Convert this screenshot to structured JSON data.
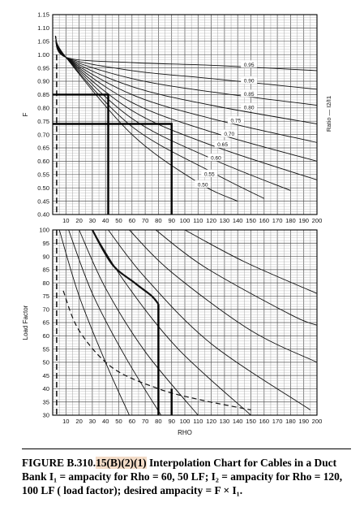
{
  "chart_data": [
    {
      "type": "line",
      "xlabel": "",
      "ylabel": "F",
      "right_label": "Ratio — I2/I1",
      "xlim": [
        0,
        200
      ],
      "ylim": [
        0.4,
        1.15
      ],
      "grid": true,
      "x_ticks": [
        10,
        20,
        30,
        40,
        50,
        60,
        70,
        80,
        90,
        100,
        110,
        120,
        130,
        140,
        150,
        160,
        170,
        180,
        190,
        200
      ],
      "x_tick_labels": [
        "10",
        "20",
        "30",
        "40",
        "50",
        "60",
        "70",
        "80",
        "90",
        "100",
        "110",
        "120",
        "130",
        "140",
        "150",
        "160",
        "170",
        "180",
        "190",
        "200"
      ],
      "y_tick_labels": [
        "1.15",
        "1.10",
        "1.05",
        "1.00",
        "0.95",
        "0.90",
        "0.85",
        "0.80",
        "0.75",
        "0.70",
        "0.65",
        "0.60",
        "0.55",
        "0.50",
        "0.45",
        "0.40"
      ],
      "series": [
        {
          "name": "0.95",
          "label_at": [
            140,
            0.96
          ],
          "points": [
            [
              2,
              1.07
            ],
            [
              10,
              0.99
            ],
            [
              60,
              0.97
            ],
            [
              120,
              0.96
            ],
            [
              200,
              0.94
            ]
          ]
        },
        {
          "name": "0.90",
          "label_at": [
            140,
            0.9
          ],
          "points": [
            [
              2,
              1.07
            ],
            [
              10,
              0.99
            ],
            [
              60,
              0.94
            ],
            [
              120,
              0.91
            ],
            [
              200,
              0.87
            ]
          ]
        },
        {
          "name": "0.85",
          "label_at": [
            140,
            0.85
          ],
          "points": [
            [
              2,
              1.07
            ],
            [
              10,
              0.99
            ],
            [
              60,
              0.91
            ],
            [
              120,
              0.86
            ],
            [
              200,
              0.81
            ]
          ]
        },
        {
          "name": "0.80",
          "label_at": [
            140,
            0.8
          ],
          "points": [
            [
              2,
              1.07
            ],
            [
              10,
              0.99
            ],
            [
              60,
              0.88
            ],
            [
              120,
              0.81
            ],
            [
              200,
              0.74
            ]
          ]
        },
        {
          "name": "0.75",
          "label_at": [
            130,
            0.75
          ],
          "points": [
            [
              2,
              1.07
            ],
            [
              10,
              0.99
            ],
            [
              60,
              0.85
            ],
            [
              120,
              0.76
            ],
            [
              200,
              0.67
            ]
          ]
        },
        {
          "name": "0.70",
          "label_at": [
            125,
            0.7
          ],
          "points": [
            [
              2,
              1.07
            ],
            [
              10,
              0.99
            ],
            [
              60,
              0.82
            ],
            [
              120,
              0.71
            ],
            [
              200,
              0.6
            ]
          ]
        },
        {
          "name": "0.65",
          "label_at": [
            120,
            0.66
          ],
          "points": [
            [
              2,
              1.07
            ],
            [
              10,
              0.99
            ],
            [
              60,
              0.79
            ],
            [
              120,
              0.66
            ],
            [
              200,
              0.53
            ]
          ]
        },
        {
          "name": "0.60",
          "label_at": [
            115,
            0.61
          ],
          "points": [
            [
              2,
              1.07
            ],
            [
              10,
              0.99
            ],
            [
              60,
              0.76
            ],
            [
              120,
              0.61
            ],
            [
              180,
              0.49
            ]
          ]
        },
        {
          "name": "0.55",
          "label_at": [
            110,
            0.55
          ],
          "points": [
            [
              2,
              1.07
            ],
            [
              10,
              0.99
            ],
            [
              60,
              0.73
            ],
            [
              120,
              0.56
            ],
            [
              160,
              0.46
            ]
          ]
        },
        {
          "name": "0.50",
          "label_at": [
            105,
            0.51
          ],
          "points": [
            [
              2,
              1.07
            ],
            [
              10,
              0.99
            ],
            [
              60,
              0.7
            ],
            [
              110,
              0.52
            ],
            [
              140,
              0.45
            ]
          ]
        }
      ],
      "example_paths": [
        {
          "style": "solid",
          "points": [
            [
              0,
              0.85
            ],
            [
              42,
              0.85
            ],
            [
              42,
              0.4
            ]
          ]
        },
        {
          "style": "solid",
          "points": [
            [
              0,
              0.74
            ],
            [
              90,
              0.74
            ],
            [
              90,
              0.4
            ]
          ]
        },
        {
          "style": "dashed",
          "points": [
            [
              3,
              1.0
            ],
            [
              3,
              0.4
            ]
          ]
        }
      ]
    },
    {
      "type": "line",
      "xlabel": "RHO",
      "ylabel": "Load Factor",
      "xlim": [
        0,
        200
      ],
      "ylim": [
        30,
        100
      ],
      "grid": true,
      "x_ticks": [
        10,
        20,
        30,
        40,
        50,
        60,
        70,
        80,
        90,
        100,
        110,
        120,
        130,
        140,
        150,
        160,
        170,
        180,
        190,
        200
      ],
      "x_tick_labels": [
        "10",
        "20",
        "30",
        "40",
        "50",
        "60",
        "70",
        "80",
        "90",
        "100",
        "110",
        "120",
        "130",
        "140",
        "150",
        "160",
        "170",
        "180",
        "190",
        "200"
      ],
      "y_tick_labels": [
        "100",
        "95",
        "90",
        "85",
        "80",
        "75",
        "70",
        "65",
        "60",
        "55",
        "50",
        "45",
        "40",
        "35",
        "30"
      ],
      "series": [
        {
          "style": "thin",
          "points": [
            [
              5,
              100
            ],
            [
              20,
              75
            ],
            [
              40,
              50
            ],
            [
              58,
              30
            ]
          ]
        },
        {
          "style": "thin",
          "points": [
            [
              12,
              100
            ],
            [
              30,
              76
            ],
            [
              55,
              52
            ],
            [
              82,
              30
            ]
          ]
        },
        {
          "style": "thin",
          "points": [
            [
              20,
              100
            ],
            [
              40,
              78
            ],
            [
              70,
              54
            ],
            [
              110,
              30
            ]
          ]
        },
        {
          "style": "thin",
          "points": [
            [
              30,
              100
            ],
            [
              55,
              80
            ],
            [
              95,
              55
            ],
            [
              150,
              30
            ]
          ]
        },
        {
          "style": "thin",
          "points": [
            [
              42,
              100
            ],
            [
              70,
              82
            ],
            [
              120,
              57
            ],
            [
              195,
              32
            ]
          ]
        },
        {
          "style": "thin",
          "points": [
            [
              58,
              100
            ],
            [
              90,
              84
            ],
            [
              150,
              62
            ],
            [
              200,
              50
            ]
          ]
        },
        {
          "style": "thin",
          "points": [
            [
              78,
              100
            ],
            [
              115,
              86
            ],
            [
              180,
              68
            ],
            [
              200,
              64
            ]
          ]
        },
        {
          "style": "thin",
          "points": [
            [
              100,
              100
            ],
            [
              145,
              88
            ],
            [
              200,
              76
            ]
          ]
        },
        {
          "style": "thick",
          "points": [
            [
              30,
              100
            ],
            [
              45,
              87
            ],
            [
              62,
              80
            ],
            [
              75,
              75
            ],
            [
              80,
              72
            ]
          ]
        },
        {
          "style": "dashed",
          "points": [
            [
              8,
              77
            ],
            [
              20,
              62
            ],
            [
              45,
              48
            ],
            [
              80,
              40
            ],
            [
              110,
              36
            ],
            [
              150,
              32
            ]
          ]
        }
      ],
      "example_paths": [
        {
          "style": "solid",
          "points": [
            [
              80,
              72
            ],
            [
              80,
              30
            ]
          ]
        },
        {
          "style": "solid",
          "points": [
            [
              90,
              40
            ],
            [
              90,
              30
            ]
          ]
        },
        {
          "style": "dashed",
          "points": [
            [
              3,
              100
            ],
            [
              3,
              30
            ]
          ]
        }
      ]
    }
  ],
  "caption": {
    "prefix": "FIGURE B.310.",
    "highlight": "15(B)(2)(1)",
    "rest": " Interpolation Chart for Cables in a Duct Bank I₁ = ampacity for Rho = 60, 50 LF; I₂ = ampacity for Rho = 120, 100 LF ( load factor); desired ampacity = F × I₁."
  }
}
